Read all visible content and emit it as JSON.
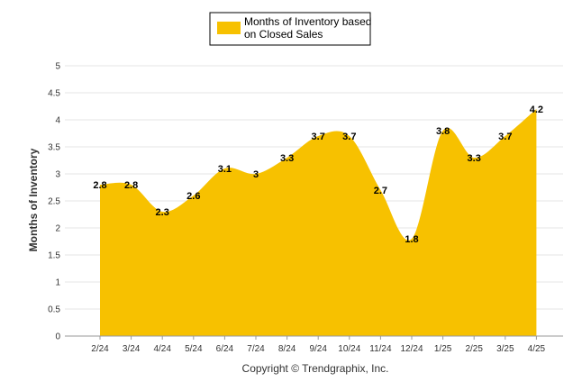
{
  "chart_data": {
    "type": "area",
    "categories": [
      "2/24",
      "3/24",
      "4/24",
      "5/24",
      "6/24",
      "7/24",
      "8/24",
      "9/24",
      "10/24",
      "11/24",
      "12/24",
      "1/25",
      "2/25",
      "3/25",
      "4/25"
    ],
    "series": [
      {
        "name": "Months of Inventory based on Closed Sales",
        "values": [
          2.8,
          2.8,
          2.3,
          2.6,
          3.1,
          3.0,
          3.3,
          3.7,
          3.7,
          2.7,
          1.8,
          3.8,
          3.3,
          3.7,
          4.2
        ],
        "labels": [
          "2.8",
          "2.8",
          "2.3",
          "2.6",
          "3.1",
          "3",
          "3.3",
          "3.7",
          "3.7",
          "2.7",
          "1.8",
          "3.8",
          "3.3",
          "3.7",
          "4.2"
        ]
      }
    ],
    "ylabel": "Months of Inventory",
    "xlabel": "",
    "ylim": [
      0,
      5
    ],
    "yticks": [
      "0",
      "0.5",
      "1",
      "1.5",
      "2",
      "2.5",
      "3",
      "3.5",
      "4",
      "4.5",
      "5"
    ],
    "legend_lines": [
      "Months of Inventory based",
      "on Closed Sales"
    ],
    "legend_position": "top-center",
    "grid": true,
    "color": "#f7c100"
  },
  "footer": {
    "copyright": "Copyright © Trendgraphix, Inc."
  }
}
